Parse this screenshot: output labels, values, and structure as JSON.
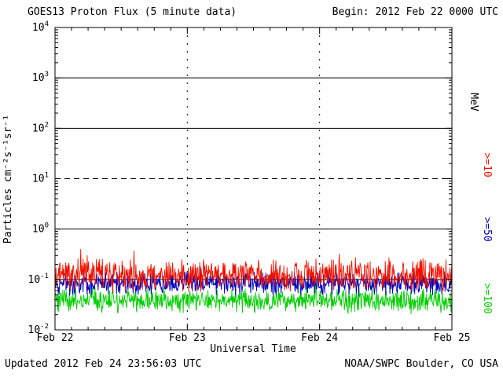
{
  "header": {
    "begin_label": "Begin: 2012 Feb 22 0000 UTC"
  },
  "footer": {
    "updated_label": "Updated 2012 Feb 24 23:56:03 UTC",
    "source_label": "NOAA/SWPC Boulder, CO USA"
  },
  "chart_data": {
    "type": "line",
    "title": "GOES13 Proton Flux (5 minute data)",
    "xlabel": "Universal Time",
    "ylabel": "Particles cm⁻²s⁻¹sr⁻¹",
    "right_axis_label": "MeV",
    "x_tick_labels": [
      "Feb 22",
      "Feb 23",
      "Feb 24",
      "Feb 25"
    ],
    "y_tick_labels": [
      "10^-2",
      "10^-1",
      "10^0",
      "10^1",
      "10^2",
      "10^3",
      "10^4"
    ],
    "ylim_log10": [
      -2,
      4
    ],
    "x_days": 3,
    "points_per_day": 288,
    "x_minor_ticks_per_day": 8,
    "grid_on": true,
    "hgrid": [
      {
        "log10": 3,
        "style": "solid"
      },
      {
        "log10": 2,
        "style": "solid"
      },
      {
        "log10": 1,
        "style": "dashed"
      },
      {
        "log10": 0,
        "style": "solid"
      },
      {
        "log10": -1,
        "style": "solid"
      }
    ],
    "vgrid_days": [
      1,
      2
    ],
    "axis_color": "#000000",
    "background_color": "#ffffff",
    "series": [
      {
        "id": "ge10",
        "name": ">=10",
        "color": "#ee1100",
        "approx_flux_range": [
          0.06,
          0.4
        ],
        "log10_mean": -0.92,
        "log10_noise": 0.2,
        "spike_prob": 0.05,
        "spike_amp": 0.3,
        "seed": 7
      },
      {
        "id": "ge50",
        "name": ">=50",
        "color": "#0000bb",
        "approx_flux_range": [
          0.045,
          0.16
        ],
        "log10_mean": -1.08,
        "log10_noise": 0.14,
        "spike_prob": 0.03,
        "spike_amp": 0.22,
        "seed": 13
      },
      {
        "id": "ge100",
        "name": ">=100",
        "color": "#00cc00",
        "approx_flux_range": [
          0.02,
          0.075
        ],
        "log10_mean": -1.42,
        "log10_noise": 0.15,
        "spike_prob": 0.02,
        "spike_amp": 0.2,
        "seed": 21
      }
    ]
  }
}
